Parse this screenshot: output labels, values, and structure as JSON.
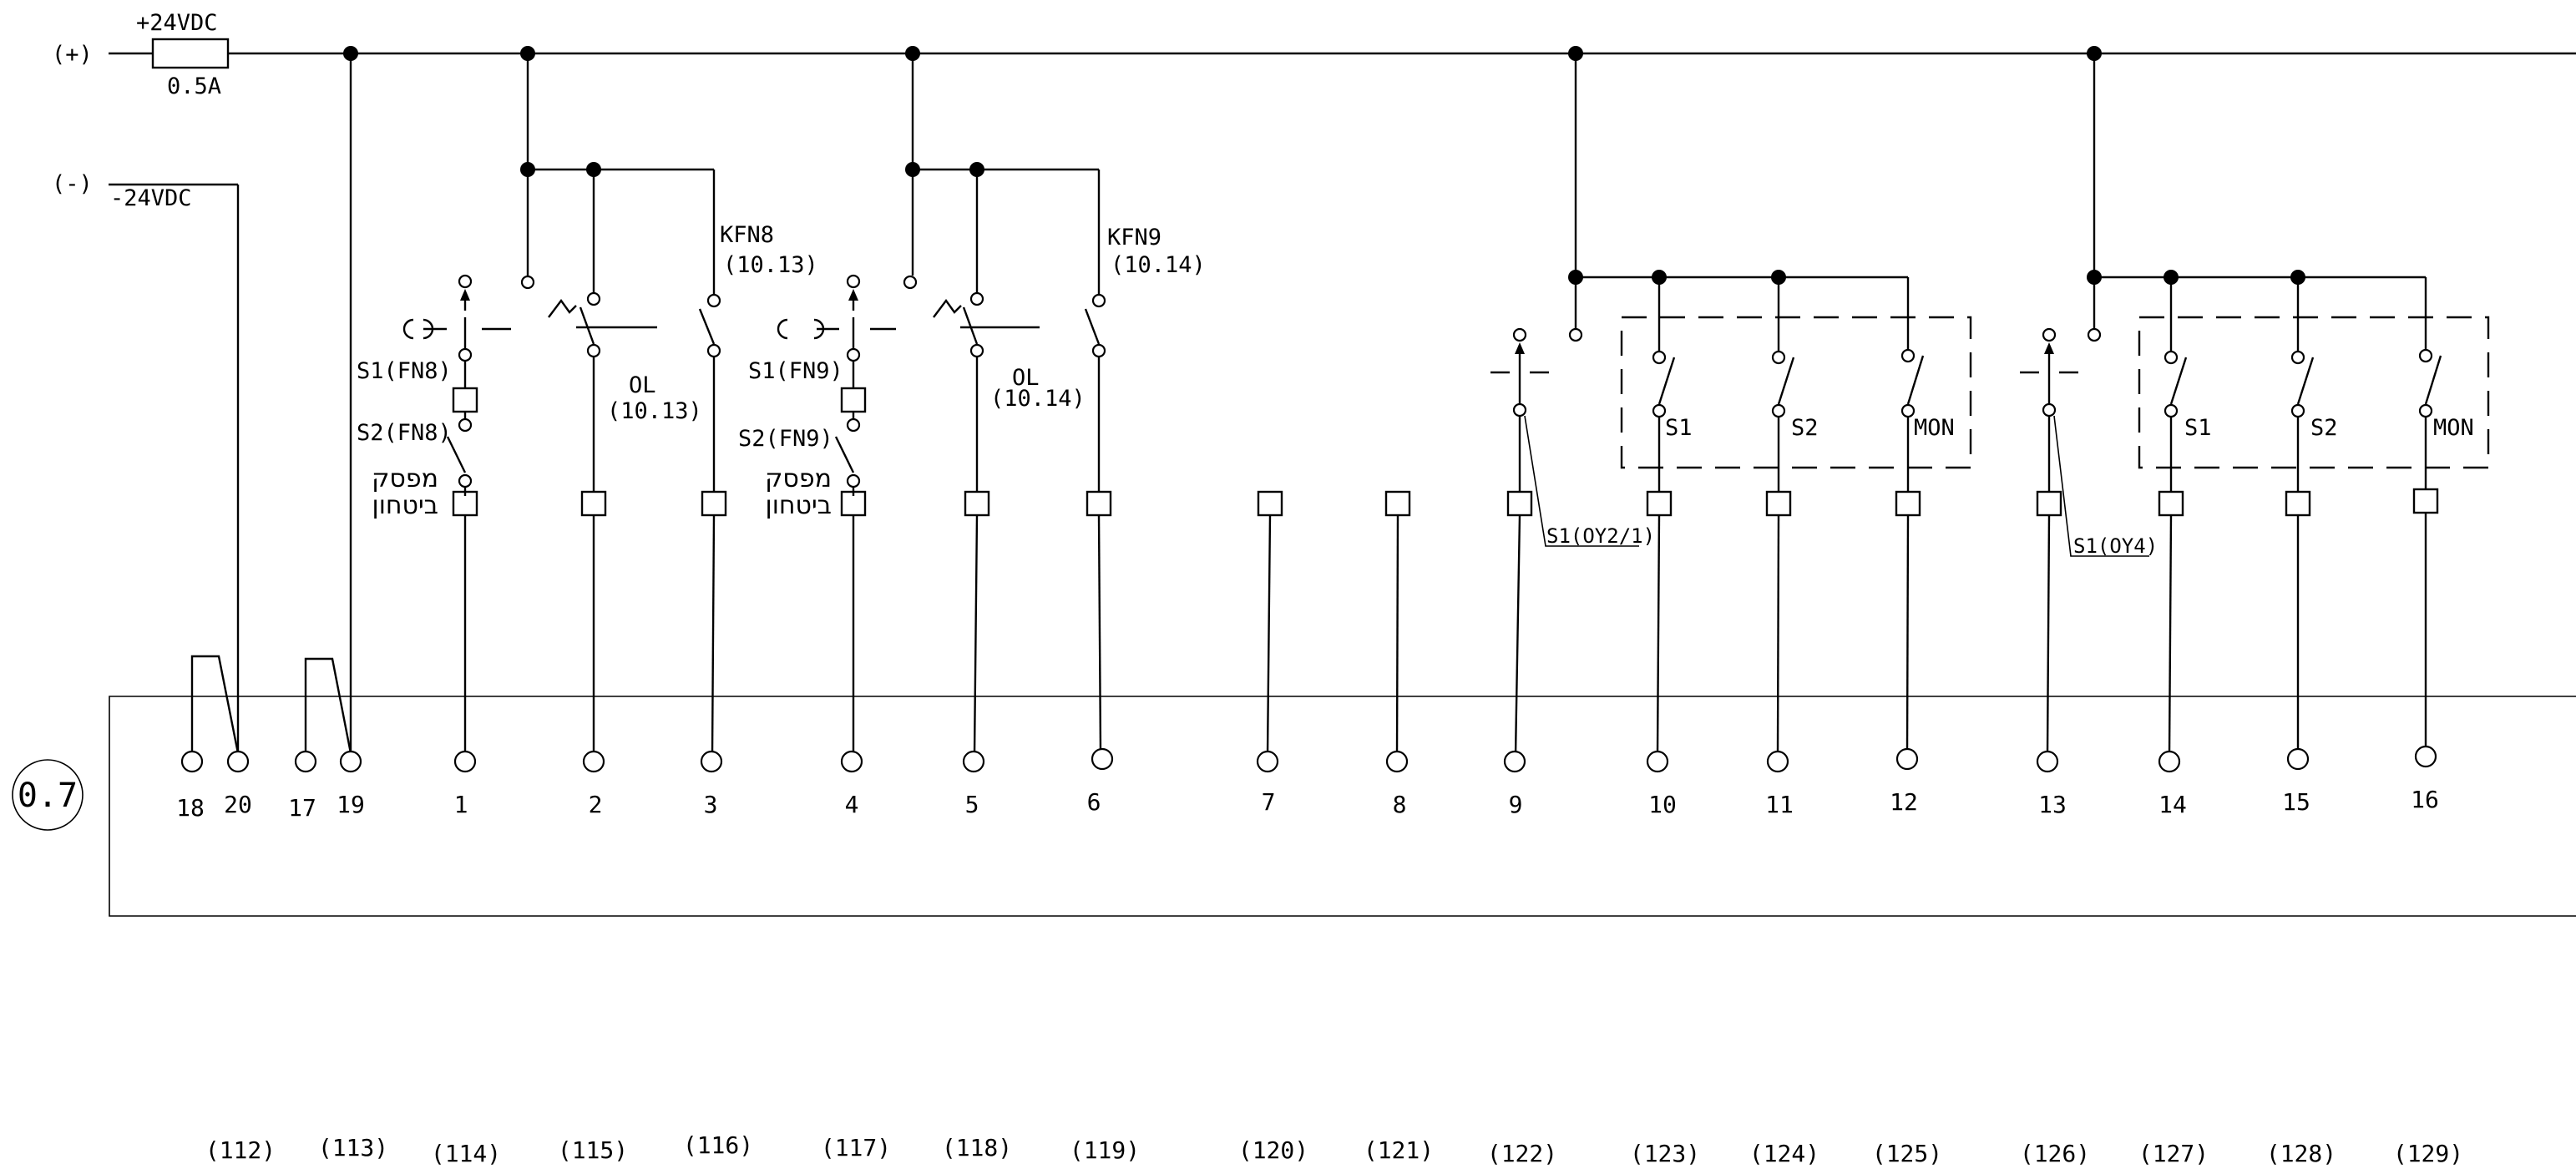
{
  "supply": {
    "plus_label": "(+)",
    "minus_label": "(-)",
    "plus_voltage": "+24VDC",
    "fuse_rating": "0.5A",
    "minus_voltage": "-24VDC"
  },
  "module_label": "0.7",
  "fn8": {
    "s1_label": "S1(FN8)",
    "s2_label": "S2(FN8)",
    "safety_line1": "מפסק",
    "safety_line2": "ביטחון",
    "ol_label": "OL",
    "ol_ref": "(10.13)",
    "kfn_label": "KFN8",
    "kfn_ref": "(10.13)"
  },
  "fn9": {
    "s1_label": "S1(FN9)",
    "s2_label": "S2(FN9)",
    "safety_line1": "מפסק",
    "safety_line2": "ביטחון",
    "ol_label": "OL",
    "ol_ref": "(10.14)",
    "kfn_label": "KFN9",
    "kfn_ref": "(10.14)"
  },
  "oy2": {
    "s1_label": "S1(OY2/1)",
    "box_s1": "S1",
    "box_s2": "S2",
    "box_mon": "MON"
  },
  "oy4": {
    "s1_label": "S1(OY4)",
    "box_s1": "S1",
    "box_s2": "S2",
    "box_mon": "MON"
  },
  "terminals": [
    "18",
    "20",
    "17",
    "19",
    "1",
    "2",
    "3",
    "4",
    "5",
    "6",
    "7",
    "8",
    "9",
    "10",
    "11",
    "12",
    "13",
    "14",
    "15",
    "16"
  ],
  "column_refs": [
    "(112)",
    "(113)",
    "(114)",
    "(115)",
    "(116)",
    "(117)",
    "(118)",
    "(119)",
    "(120)",
    "(121)",
    "(122)",
    "(123)",
    "(124)",
    "(125)",
    "(126)",
    "(127)",
    "(128)",
    "(129)"
  ]
}
